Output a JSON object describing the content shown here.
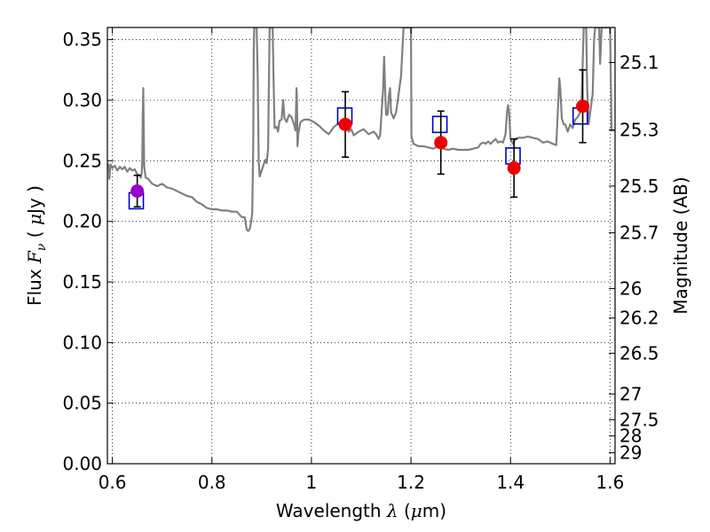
{
  "chart_data": {
    "type": "line",
    "title": "",
    "xlabel": {
      "prefix": "Wavelength ",
      "symbol": "λ",
      "open": " (",
      "mu": "μ",
      "unit": "m)"
    },
    "ylabel": {
      "prefix": "Flux ",
      "symbol": "F",
      "subscript": "ν",
      "open": " ( ",
      "mu": "μ",
      "unit": "Jy )"
    },
    "y2label": "Magnitude (AB)",
    "xlim": [
      0.59,
      1.61
    ],
    "ylim": [
      0.0,
      0.36
    ],
    "grid": true,
    "x_ticks": [
      {
        "value": 0.6,
        "label": "0.6"
      },
      {
        "value": 0.8,
        "label": "0.8"
      },
      {
        "value": 1.0,
        "label": "1"
      },
      {
        "value": 1.2,
        "label": "1.2"
      },
      {
        "value": 1.4,
        "label": "1.4"
      },
      {
        "value": 1.6,
        "label": "1.6"
      }
    ],
    "y_ticks": [
      {
        "value": 0.0,
        "label": "0.00"
      },
      {
        "value": 0.05,
        "label": "0.05"
      },
      {
        "value": 0.1,
        "label": "0.10"
      },
      {
        "value": 0.15,
        "label": "0.15"
      },
      {
        "value": 0.2,
        "label": "0.20"
      },
      {
        "value": 0.25,
        "label": "0.25"
      },
      {
        "value": 0.3,
        "label": "0.30"
      },
      {
        "value": 0.35,
        "label": "0.35"
      }
    ],
    "y2_ticks": [
      {
        "mag": 25.1,
        "label": "25.1"
      },
      {
        "mag": 25.3,
        "label": "25.3"
      },
      {
        "mag": 25.5,
        "label": "25.5"
      },
      {
        "mag": 25.7,
        "label": "25.7"
      },
      {
        "mag": 26.0,
        "label": "26"
      },
      {
        "mag": 26.2,
        "label": "26.2"
      },
      {
        "mag": 26.5,
        "label": "26.5"
      },
      {
        "mag": 27.0,
        "label": "27"
      },
      {
        "mag": 27.5,
        "label": "27.5"
      },
      {
        "mag": 28.0,
        "label": "28"
      },
      {
        "mag": 29.0,
        "label": "29"
      }
    ],
    "model_spectrum": {
      "color": "#808080",
      "points": [
        [
          0.59,
          0.248
        ],
        [
          0.593,
          0.245
        ],
        [
          0.594,
          0.235
        ],
        [
          0.596,
          0.247
        ],
        [
          0.6,
          0.244
        ],
        [
          0.605,
          0.246
        ],
        [
          0.61,
          0.242
        ],
        [
          0.615,
          0.245
        ],
        [
          0.62,
          0.243
        ],
        [
          0.625,
          0.245
        ],
        [
          0.63,
          0.241
        ],
        [
          0.635,
          0.244
        ],
        [
          0.64,
          0.242
        ],
        [
          0.645,
          0.243
        ],
        [
          0.65,
          0.239
        ],
        [
          0.655,
          0.238
        ],
        [
          0.657,
          0.236
        ],
        [
          0.659,
          0.24
        ],
        [
          0.66,
          0.25
        ],
        [
          0.661,
          0.285
        ],
        [
          0.662,
          0.31
        ],
        [
          0.663,
          0.28
        ],
        [
          0.664,
          0.245
        ],
        [
          0.667,
          0.236
        ],
        [
          0.672,
          0.235
        ],
        [
          0.68,
          0.231
        ],
        [
          0.69,
          0.229
        ],
        [
          0.7,
          0.231
        ],
        [
          0.71,
          0.228
        ],
        [
          0.72,
          0.227
        ],
        [
          0.73,
          0.225
        ],
        [
          0.74,
          0.223
        ],
        [
          0.75,
          0.221
        ],
        [
          0.76,
          0.22
        ],
        [
          0.77,
          0.216
        ],
        [
          0.78,
          0.214
        ],
        [
          0.79,
          0.211
        ],
        [
          0.8,
          0.21
        ],
        [
          0.81,
          0.21
        ],
        [
          0.82,
          0.209
        ],
        [
          0.83,
          0.209
        ],
        [
          0.84,
          0.208
        ],
        [
          0.85,
          0.208
        ],
        [
          0.86,
          0.2035
        ],
        [
          0.866,
          0.2034
        ],
        [
          0.87,
          0.193
        ],
        [
          0.873,
          0.192
        ],
        [
          0.876,
          0.194
        ],
        [
          0.879,
          0.2
        ],
        [
          0.881,
          0.207
        ],
        [
          0.883,
          0.26
        ],
        [
          0.884,
          0.34
        ],
        [
          0.885,
          0.36
        ],
        [
          0.89,
          0.36
        ],
        [
          0.892,
          0.32
        ],
        [
          0.894,
          0.25
        ],
        [
          0.896,
          0.237
        ],
        [
          0.9,
          0.242
        ],
        [
          0.905,
          0.248
        ],
        [
          0.908,
          0.251
        ],
        [
          0.91,
          0.248
        ],
        [
          0.913,
          0.26
        ],
        [
          0.916,
          0.36
        ],
        [
          0.922,
          0.36
        ],
        [
          0.924,
          0.315
        ],
        [
          0.926,
          0.277
        ],
        [
          0.93,
          0.278
        ],
        [
          0.933,
          0.274
        ],
        [
          0.936,
          0.283
        ],
        [
          0.94,
          0.284
        ],
        [
          0.943,
          0.3
        ],
        [
          0.946,
          0.285
        ],
        [
          0.95,
          0.282
        ],
        [
          0.955,
          0.288
        ],
        [
          0.96,
          0.286
        ],
        [
          0.965,
          0.28
        ],
        [
          0.968,
          0.275
        ],
        [
          0.97,
          0.31
        ],
        [
          0.971,
          0.297
        ],
        [
          0.972,
          0.262
        ],
        [
          0.974,
          0.273
        ],
        [
          0.978,
          0.282
        ],
        [
          0.985,
          0.284
        ],
        [
          0.995,
          0.284
        ],
        [
          1.005,
          0.282
        ],
        [
          1.015,
          0.279
        ],
        [
          1.025,
          0.275
        ],
        [
          1.035,
          0.272
        ],
        [
          1.045,
          0.278
        ],
        [
          1.055,
          0.281
        ],
        [
          1.065,
          0.279
        ],
        [
          1.075,
          0.274
        ],
        [
          1.08,
          0.276
        ],
        [
          1.085,
          0.271
        ],
        [
          1.095,
          0.274
        ],
        [
          1.105,
          0.276
        ],
        [
          1.115,
          0.272
        ],
        [
          1.125,
          0.274
        ],
        [
          1.13,
          0.272
        ],
        [
          1.135,
          0.268
        ],
        [
          1.138,
          0.271
        ],
        [
          1.141,
          0.29
        ],
        [
          1.144,
          0.31
        ],
        [
          1.146,
          0.336
        ],
        [
          1.148,
          0.31
        ],
        [
          1.15,
          0.288
        ],
        [
          1.153,
          0.288
        ],
        [
          1.156,
          0.305
        ],
        [
          1.158,
          0.31
        ],
        [
          1.16,
          0.29
        ],
        [
          1.165,
          0.285
        ],
        [
          1.17,
          0.29
        ],
        [
          1.175,
          0.305
        ],
        [
          1.18,
          0.32
        ],
        [
          1.185,
          0.36
        ],
        [
          1.2,
          0.36
        ],
        [
          1.201,
          0.27
        ],
        [
          1.205,
          0.264
        ],
        [
          1.215,
          0.262
        ],
        [
          1.225,
          0.262
        ],
        [
          1.235,
          0.261
        ],
        [
          1.245,
          0.26
        ],
        [
          1.255,
          0.262
        ],
        [
          1.265,
          0.26
        ],
        [
          1.275,
          0.259
        ],
        [
          1.285,
          0.26
        ],
        [
          1.295,
          0.259
        ],
        [
          1.305,
          0.259
        ],
        [
          1.315,
          0.259
        ],
        [
          1.325,
          0.26
        ],
        [
          1.335,
          0.261
        ],
        [
          1.34,
          0.264
        ],
        [
          1.345,
          0.265
        ],
        [
          1.35,
          0.264
        ],
        [
          1.355,
          0.266
        ],
        [
          1.36,
          0.264
        ],
        [
          1.365,
          0.266
        ],
        [
          1.37,
          0.268
        ],
        [
          1.375,
          0.265
        ],
        [
          1.38,
          0.266
        ],
        [
          1.385,
          0.265
        ],
        [
          1.39,
          0.272
        ],
        [
          1.393,
          0.29
        ],
        [
          1.395,
          0.296
        ],
        [
          1.397,
          0.29
        ],
        [
          1.4,
          0.268
        ],
        [
          1.405,
          0.264
        ],
        [
          1.41,
          0.268
        ],
        [
          1.415,
          0.269
        ],
        [
          1.425,
          0.269
        ],
        [
          1.435,
          0.27
        ],
        [
          1.445,
          0.269
        ],
        [
          1.455,
          0.268
        ],
        [
          1.465,
          0.265
        ],
        [
          1.475,
          0.266
        ],
        [
          1.485,
          0.264
        ],
        [
          1.492,
          0.263
        ],
        [
          1.496,
          0.3
        ],
        [
          1.498,
          0.318
        ],
        [
          1.5,
          0.31
        ],
        [
          1.503,
          0.285
        ],
        [
          1.507,
          0.28
        ],
        [
          1.51,
          0.28
        ],
        [
          1.515,
          0.274
        ],
        [
          1.52,
          0.28
        ],
        [
          1.525,
          0.277
        ],
        [
          1.53,
          0.284
        ],
        [
          1.535,
          0.286
        ],
        [
          1.54,
          0.29
        ],
        [
          1.543,
          0.3
        ],
        [
          1.545,
          0.33
        ],
        [
          1.547,
          0.36
        ],
        [
          1.552,
          0.36
        ],
        [
          1.554,
          0.31
        ],
        [
          1.557,
          0.28
        ],
        [
          1.56,
          0.29
        ],
        [
          1.565,
          0.305
        ],
        [
          1.568,
          0.35
        ],
        [
          1.57,
          0.36
        ],
        [
          1.578,
          0.36
        ],
        [
          1.58,
          0.33
        ],
        [
          1.583,
          0.36
        ],
        [
          1.6,
          0.36
        ],
        [
          1.603,
          0.275
        ],
        [
          1.608,
          0.275
        ],
        [
          1.61,
          0.275
        ]
      ]
    },
    "model_photometry": {
      "marker": "open-square",
      "color": "#0000c8",
      "points": [
        {
          "x": 0.648,
          "y": 0.217
        },
        {
          "x": 1.067,
          "y": 0.287
        },
        {
          "x": 1.258,
          "y": 0.28
        },
        {
          "x": 1.405,
          "y": 0.254
        },
        {
          "x": 1.54,
          "y": 0.287
        }
      ]
    },
    "observations": {
      "marker": "filled-circle",
      "points": [
        {
          "x": 0.65,
          "y": 0.225,
          "err": 0.013,
          "color": "#9900cc"
        },
        {
          "x": 1.068,
          "y": 0.28,
          "err": 0.027,
          "color": "#ee0000"
        },
        {
          "x": 1.26,
          "y": 0.265,
          "err": 0.026,
          "color": "#ee0000"
        },
        {
          "x": 1.407,
          "y": 0.244,
          "err": 0.024,
          "color": "#ee0000"
        },
        {
          "x": 1.545,
          "y": 0.295,
          "err": 0.03,
          "color": "#ee0000"
        }
      ]
    }
  }
}
